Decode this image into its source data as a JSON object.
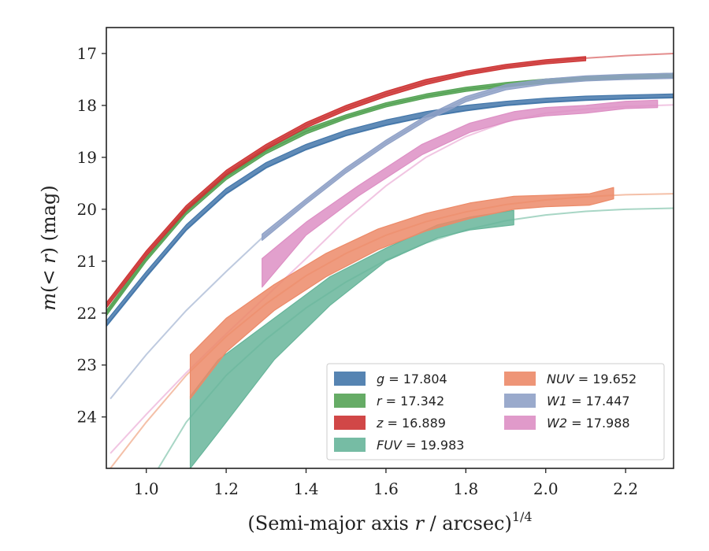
{
  "chart_data": {
    "type": "line",
    "xlabel_text": "(Semi-major axis ",
    "xlabel_var": "r",
    "xlabel_rest": " / arcsec)",
    "xlabel_exp": "1/4",
    "ylabel_m": "m",
    "ylabel_mid": "(< ",
    "ylabel_r": "r",
    "ylabel_end": ") (mag)",
    "xlim": [
      0.9,
      2.32
    ],
    "ylim": [
      24.99,
      16.5
    ],
    "y_inverted": true,
    "xticks": [
      1.0,
      1.2,
      1.4,
      1.6,
      1.8,
      2.0,
      2.2
    ],
    "xtick_labels": [
      "1.0",
      "1.2",
      "1.4",
      "1.6",
      "1.8",
      "2.0",
      "2.2"
    ],
    "yticks": [
      17,
      18,
      19,
      20,
      21,
      22,
      23,
      24
    ],
    "ytick_labels": [
      "17",
      "18",
      "19",
      "20",
      "21",
      "22",
      "23",
      "24"
    ],
    "grid": false,
    "legend_position": "lower-right",
    "series": [
      {
        "name": "g",
        "legend_value": "17.804",
        "kind": "band",
        "color": "#4477aa",
        "model_color": "#4477aa",
        "model": [
          [
            0.9,
            22.25
          ],
          [
            1.0,
            21.3
          ],
          [
            1.1,
            20.4
          ],
          [
            1.2,
            19.7
          ],
          [
            1.3,
            19.2
          ],
          [
            1.4,
            18.85
          ],
          [
            1.5,
            18.58
          ],
          [
            1.6,
            18.38
          ],
          [
            1.7,
            18.22
          ],
          [
            1.8,
            18.1
          ],
          [
            1.9,
            18.0
          ],
          [
            2.0,
            17.94
          ],
          [
            2.1,
            17.9
          ],
          [
            2.2,
            17.87
          ],
          [
            2.32,
            17.85
          ]
        ],
        "data": [
          [
            0.9,
            22.25,
            22.15
          ],
          [
            1.0,
            21.3,
            21.2
          ],
          [
            1.1,
            20.4,
            20.3
          ],
          [
            1.2,
            19.7,
            19.6
          ],
          [
            1.3,
            19.2,
            19.1
          ],
          [
            1.4,
            18.85,
            18.75
          ],
          [
            1.5,
            18.58,
            18.48
          ],
          [
            1.6,
            18.38,
            18.28
          ],
          [
            1.7,
            18.22,
            18.12
          ],
          [
            1.8,
            18.1,
            18.0
          ],
          [
            1.9,
            18.0,
            17.92
          ],
          [
            2.0,
            17.94,
            17.86
          ],
          [
            2.1,
            17.9,
            17.82
          ],
          [
            2.2,
            17.87,
            17.8
          ],
          [
            2.32,
            17.85,
            17.78
          ]
        ]
      },
      {
        "name": "r",
        "legend_value": "17.342",
        "kind": "band",
        "color": "#55a355",
        "model_color": "#55a355",
        "model": [
          [
            0.9,
            22.0
          ],
          [
            1.0,
            20.95
          ],
          [
            1.1,
            20.05
          ],
          [
            1.2,
            19.38
          ],
          [
            1.3,
            18.88
          ],
          [
            1.4,
            18.5
          ],
          [
            1.5,
            18.22
          ],
          [
            1.6,
            17.99
          ],
          [
            1.7,
            17.82
          ],
          [
            1.8,
            17.69
          ],
          [
            1.9,
            17.6
          ],
          [
            2.0,
            17.53
          ],
          [
            2.1,
            17.48
          ],
          [
            2.2,
            17.45
          ],
          [
            2.32,
            17.42
          ]
        ],
        "data": [
          [
            0.9,
            22.05,
            21.95
          ],
          [
            1.0,
            21.0,
            20.9
          ],
          [
            1.1,
            20.1,
            20.0
          ],
          [
            1.2,
            19.43,
            19.33
          ],
          [
            1.3,
            18.93,
            18.83
          ],
          [
            1.4,
            18.55,
            18.45
          ],
          [
            1.5,
            18.26,
            18.18
          ],
          [
            1.6,
            18.03,
            17.95
          ],
          [
            1.7,
            17.86,
            17.78
          ],
          [
            1.8,
            17.73,
            17.65
          ],
          [
            1.9,
            17.64,
            17.56
          ],
          [
            2.0,
            17.57,
            17.49
          ],
          [
            2.1,
            17.52,
            17.44
          ],
          [
            2.2,
            17.49,
            17.41
          ],
          [
            2.32,
            17.46,
            17.38
          ]
        ]
      },
      {
        "name": "z",
        "legend_value": "16.889",
        "kind": "band",
        "color": "#cc3333",
        "model_color": "#e08080",
        "model": [
          [
            0.9,
            21.85
          ],
          [
            1.0,
            20.85
          ],
          [
            1.1,
            19.98
          ],
          [
            1.2,
            19.3
          ],
          [
            1.3,
            18.8
          ],
          [
            1.4,
            18.38
          ],
          [
            1.5,
            18.05
          ],
          [
            1.6,
            17.78
          ],
          [
            1.7,
            17.55
          ],
          [
            1.8,
            17.38
          ],
          [
            1.9,
            17.25
          ],
          [
            2.0,
            17.16
          ],
          [
            2.1,
            17.09
          ],
          [
            2.2,
            17.04
          ],
          [
            2.32,
            17.0
          ]
        ],
        "data": [
          [
            0.9,
            21.9,
            21.8
          ],
          [
            1.0,
            20.9,
            20.8
          ],
          [
            1.1,
            20.03,
            19.93
          ],
          [
            1.2,
            19.35,
            19.25
          ],
          [
            1.3,
            18.85,
            18.75
          ],
          [
            1.4,
            18.43,
            18.33
          ],
          [
            1.5,
            18.1,
            18.0
          ],
          [
            1.6,
            17.83,
            17.73
          ],
          [
            1.7,
            17.6,
            17.5
          ],
          [
            1.8,
            17.42,
            17.34
          ],
          [
            1.9,
            17.29,
            17.21
          ],
          [
            2.0,
            17.2,
            17.12
          ],
          [
            2.1,
            17.14,
            17.06
          ]
        ]
      },
      {
        "name": "FUV",
        "legend_value": "19.983",
        "kind": "band",
        "color": "#67b59a",
        "model_color": "#9fd1bf",
        "model": [
          [
            1.03,
            24.99
          ],
          [
            1.1,
            24.1
          ],
          [
            1.2,
            23.2
          ],
          [
            1.3,
            22.5
          ],
          [
            1.4,
            21.9
          ],
          [
            1.5,
            21.4
          ],
          [
            1.6,
            20.98
          ],
          [
            1.7,
            20.65
          ],
          [
            1.8,
            20.4
          ],
          [
            1.9,
            20.22
          ],
          [
            2.0,
            20.11
          ],
          [
            2.1,
            20.04
          ],
          [
            2.2,
            20.0
          ],
          [
            2.32,
            19.98
          ]
        ],
        "data": [
          [
            1.11,
            24.99,
            23.6
          ],
          [
            1.18,
            24.3,
            22.9
          ],
          [
            1.32,
            22.9,
            22.1
          ],
          [
            1.46,
            21.85,
            21.3
          ],
          [
            1.6,
            21.0,
            20.75
          ],
          [
            1.73,
            20.55,
            20.3
          ],
          [
            1.81,
            20.4,
            20.15
          ],
          [
            1.92,
            20.3,
            20.02
          ]
        ]
      },
      {
        "name": "NUV",
        "legend_value": "19.652",
        "kind": "band",
        "color": "#ec8a68",
        "model_color": "#f3b99f",
        "model": [
          [
            0.91,
            24.99
          ],
          [
            1.0,
            24.1
          ],
          [
            1.1,
            23.2
          ],
          [
            1.2,
            22.45
          ],
          [
            1.3,
            21.82
          ],
          [
            1.4,
            21.28
          ],
          [
            1.5,
            20.85
          ],
          [
            1.6,
            20.5
          ],
          [
            1.7,
            20.24
          ],
          [
            1.8,
            20.05
          ],
          [
            1.9,
            19.91
          ],
          [
            2.0,
            19.82
          ],
          [
            2.1,
            19.76
          ],
          [
            2.2,
            19.72
          ],
          [
            2.32,
            19.7
          ]
        ],
        "data": [
          [
            1.11,
            23.65,
            22.8
          ],
          [
            1.2,
            22.75,
            22.1
          ],
          [
            1.32,
            21.95,
            21.45
          ],
          [
            1.45,
            21.3,
            20.85
          ],
          [
            1.58,
            20.78,
            20.38
          ],
          [
            1.7,
            20.42,
            20.08
          ],
          [
            1.81,
            20.18,
            19.88
          ],
          [
            1.92,
            20.0,
            19.75
          ],
          [
            2.0,
            19.95,
            19.73
          ],
          [
            2.11,
            19.92,
            19.7
          ],
          [
            2.17,
            19.8,
            19.58
          ]
        ]
      },
      {
        "name": "W1",
        "legend_value": "17.447",
        "kind": "band",
        "color": "#8fa1c7",
        "model_color": "#b7c4db",
        "model": [
          [
            0.91,
            23.65
          ],
          [
            1.0,
            22.8
          ],
          [
            1.1,
            21.95
          ],
          [
            1.2,
            21.2
          ],
          [
            1.29,
            20.55
          ],
          [
            1.4,
            19.85
          ],
          [
            1.5,
            19.25
          ],
          [
            1.6,
            18.72
          ],
          [
            1.7,
            18.25
          ],
          [
            1.8,
            17.88
          ],
          [
            1.9,
            17.65
          ],
          [
            2.0,
            17.54
          ],
          [
            2.1,
            17.48
          ],
          [
            2.2,
            17.45
          ],
          [
            2.32,
            17.43
          ]
        ],
        "data": [
          [
            1.29,
            20.6,
            20.48
          ],
          [
            1.4,
            19.9,
            19.8
          ],
          [
            1.5,
            19.3,
            19.2
          ],
          [
            1.6,
            18.77,
            18.67
          ],
          [
            1.7,
            18.3,
            18.2
          ],
          [
            1.8,
            17.93,
            17.83
          ],
          [
            1.9,
            17.7,
            17.6
          ],
          [
            2.0,
            17.59,
            17.49
          ],
          [
            2.1,
            17.53,
            17.43
          ],
          [
            2.2,
            17.5,
            17.4
          ],
          [
            2.32,
            17.48,
            17.38
          ]
        ]
      },
      {
        "name": "W2",
        "legend_value": "17.988",
        "kind": "band",
        "color": "#dd8fc4",
        "model_color": "#efbfdf",
        "model": [
          [
            0.91,
            24.7
          ],
          [
            1.0,
            23.95
          ],
          [
            1.1,
            23.15
          ],
          [
            1.2,
            22.4
          ],
          [
            1.29,
            21.75
          ],
          [
            1.4,
            20.95
          ],
          [
            1.5,
            20.2
          ],
          [
            1.6,
            19.55
          ],
          [
            1.7,
            19.0
          ],
          [
            1.8,
            18.6
          ],
          [
            1.9,
            18.32
          ],
          [
            2.0,
            18.15
          ],
          [
            2.1,
            18.07
          ],
          [
            2.2,
            18.02
          ],
          [
            2.32,
            17.99
          ]
        ],
        "data": [
          [
            1.29,
            21.5,
            20.95
          ],
          [
            1.4,
            20.5,
            20.25
          ],
          [
            1.53,
            19.75,
            19.55
          ],
          [
            1.69,
            18.95,
            18.75
          ],
          [
            1.81,
            18.52,
            18.34
          ],
          [
            1.92,
            18.28,
            18.12
          ],
          [
            2.0,
            18.2,
            18.04
          ],
          [
            2.1,
            18.15,
            18.0
          ],
          [
            2.2,
            18.06,
            17.92
          ],
          [
            2.28,
            18.04,
            17.9
          ]
        ]
      }
    ]
  }
}
